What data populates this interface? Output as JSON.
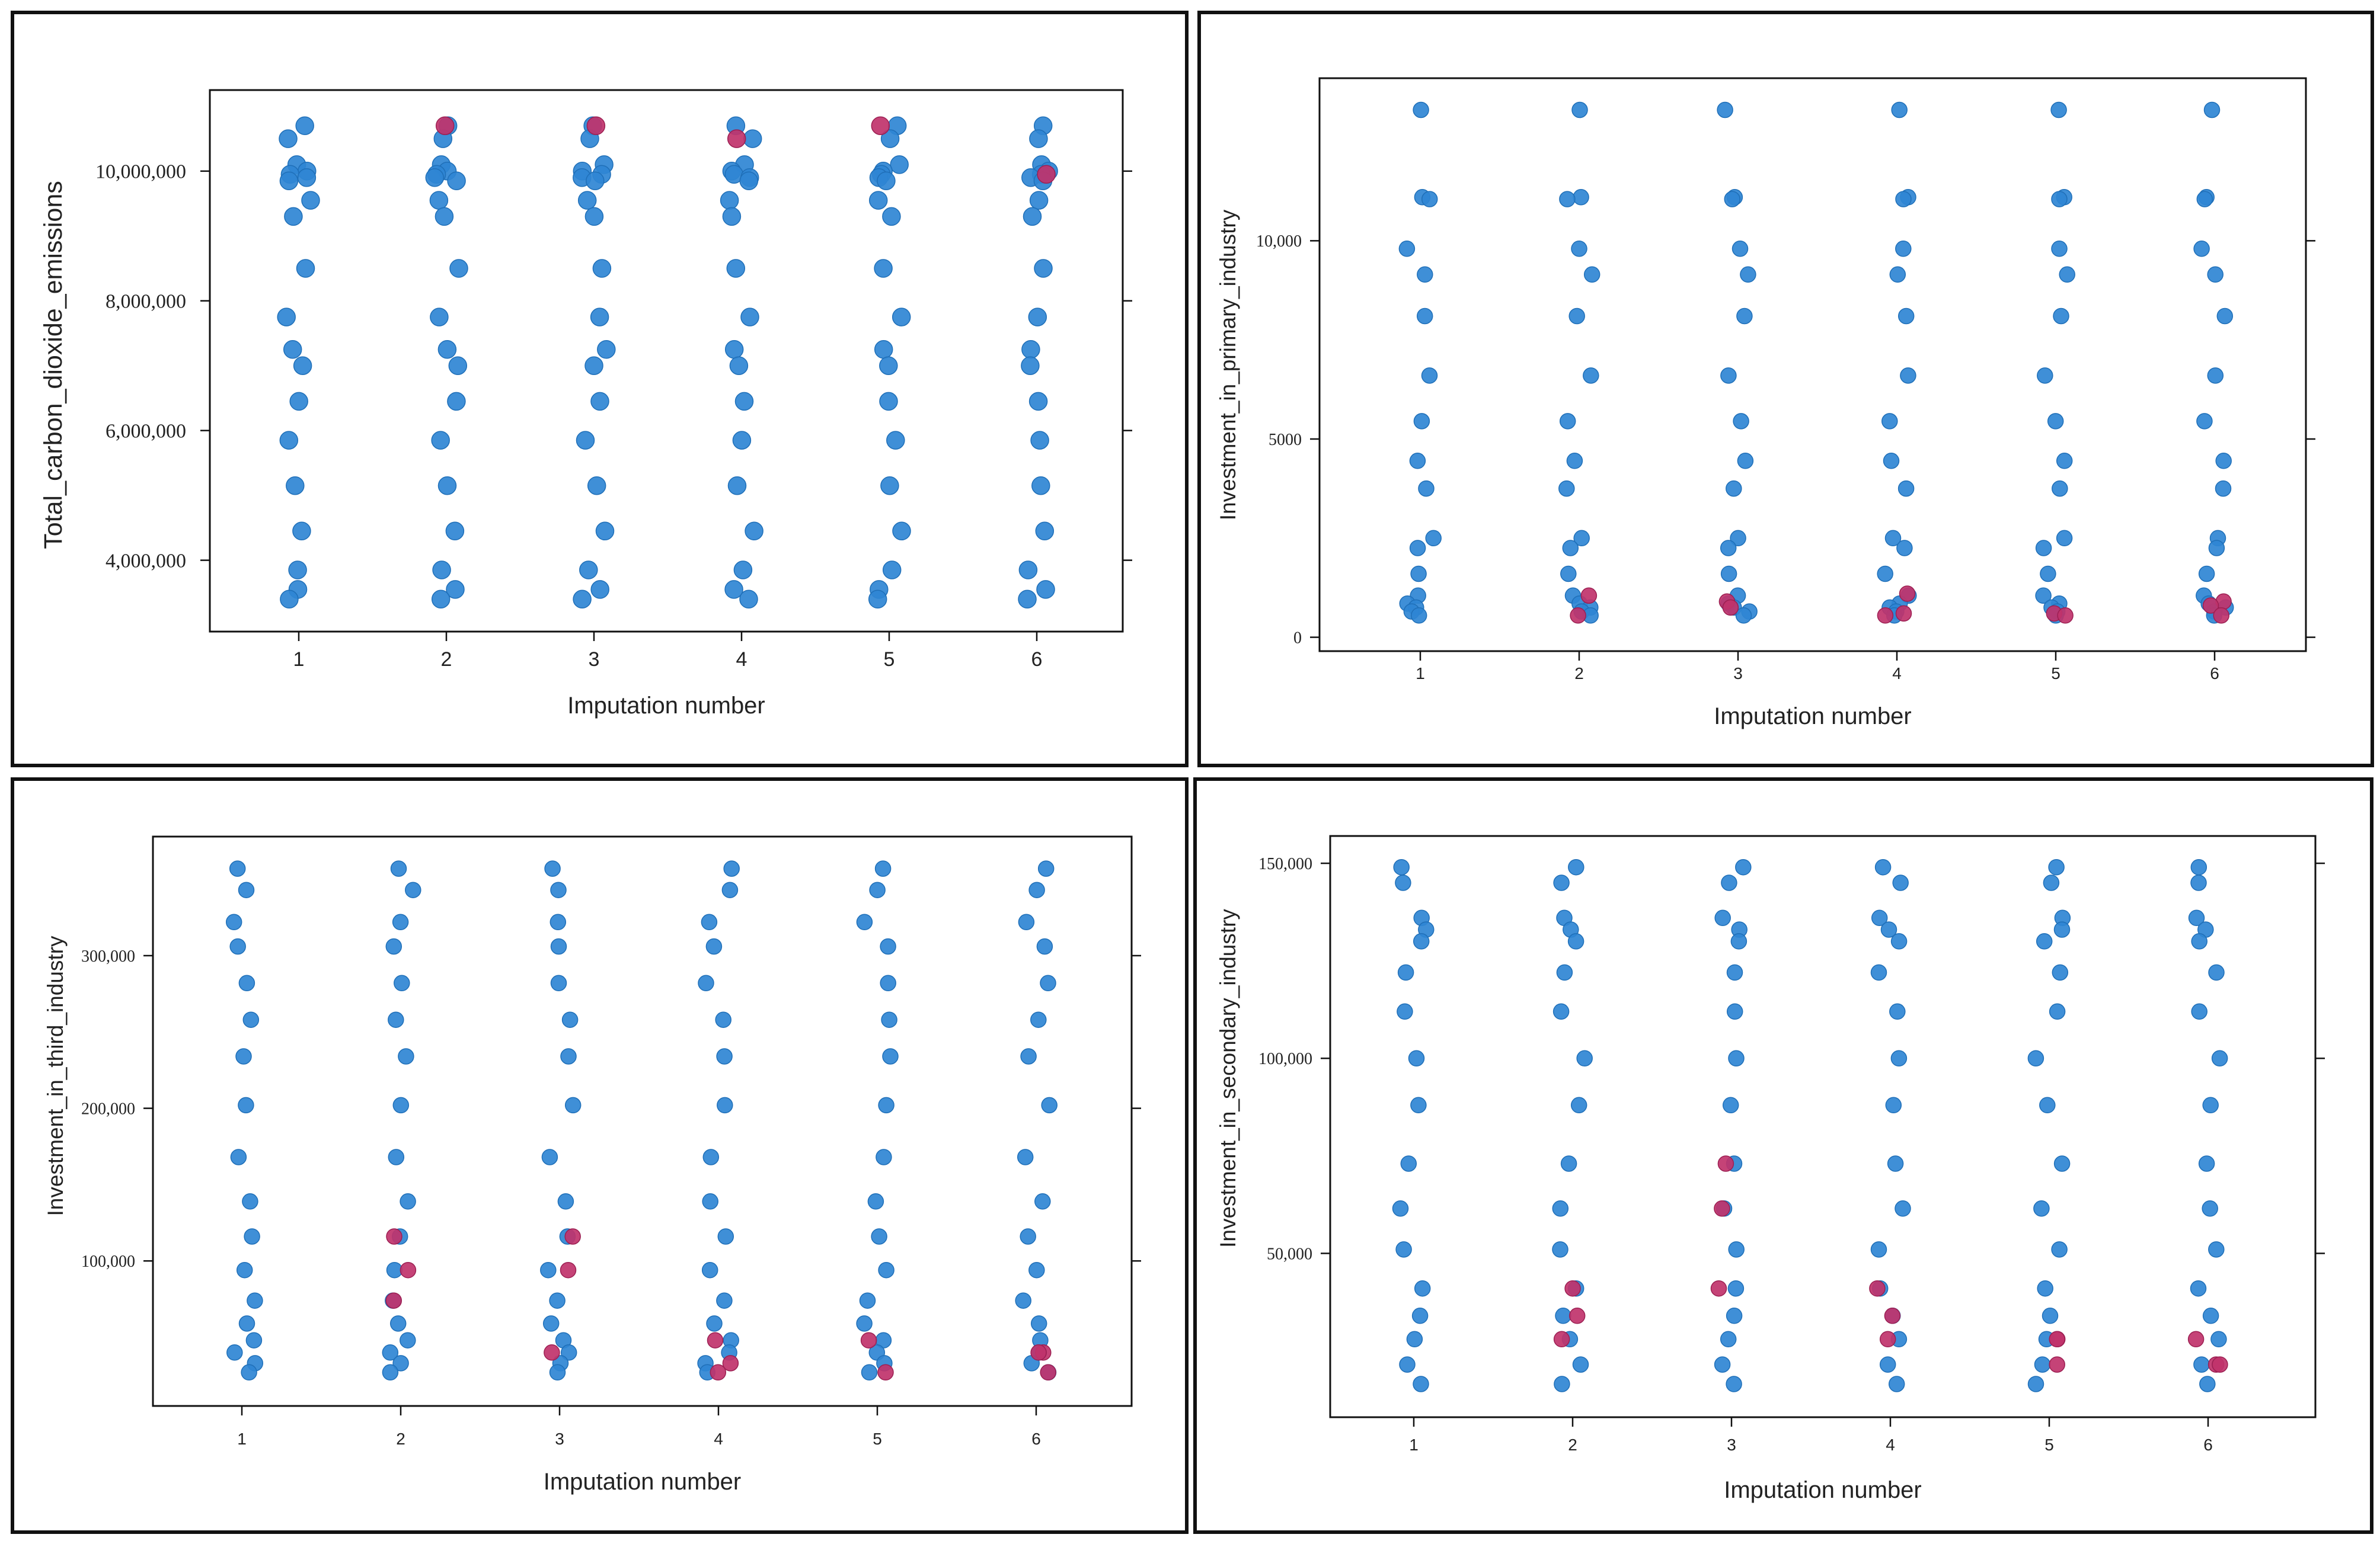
{
  "colors": {
    "observed": "#2f86d4",
    "imputed": "#c0336b",
    "frame": "#111111"
  },
  "chart_data": [
    {
      "type": "scatter",
      "title": "",
      "xlabel": "Imputation number",
      "ylabel": "Total_carbon_dioxide_emissions",
      "x_ticks": [
        "1",
        "2",
        "3",
        "4",
        "5",
        "6"
      ],
      "ylim": [
        2900000,
        11250000
      ],
      "y_ticks": [
        4000000,
        6000000,
        8000000,
        10000000
      ],
      "y_tick_labels": [
        "4,000,000",
        "6,000,000",
        "8,000,000",
        "10,000,000"
      ],
      "observed_values": [
        10700000,
        10500000,
        10100000,
        10000000,
        9950000,
        9900000,
        9850000,
        9550000,
        9300000,
        8500000,
        7750000,
        7250000,
        7000000,
        6450000,
        5850000,
        5150000,
        4450000,
        3850000,
        3550000,
        3400000
      ],
      "imputed": [
        {
          "imp": 2,
          "y": 10700000
        },
        {
          "imp": 3,
          "y": 10700000
        },
        {
          "imp": 4,
          "y": 10500000
        },
        {
          "imp": 5,
          "y": 10700000
        },
        {
          "imp": 6,
          "y": 9950000
        }
      ]
    },
    {
      "type": "scatter",
      "title": "",
      "xlabel": "Imputation number",
      "ylabel": "Investment_in_primary_industry",
      "x_ticks": [
        "1",
        "2",
        "3",
        "4",
        "5",
        "6"
      ],
      "ylim": [
        -350,
        14100
      ],
      "y_ticks": [
        0,
        5000,
        10000
      ],
      "y_tick_labels": [
        "0",
        "5000",
        "10,000"
      ],
      "observed_values": [
        13300,
        11100,
        11050,
        9800,
        9150,
        8100,
        6600,
        5450,
        4450,
        3750,
        2500,
        2250,
        1600,
        1050,
        850,
        750,
        650,
        550
      ],
      "imputed": [
        {
          "imp": 2,
          "y": 1050
        },
        {
          "imp": 2,
          "y": 550
        },
        {
          "imp": 3,
          "y": 900
        },
        {
          "imp": 3,
          "y": 750
        },
        {
          "imp": 4,
          "y": 1100
        },
        {
          "imp": 4,
          "y": 600
        },
        {
          "imp": 4,
          "y": 550
        },
        {
          "imp": 5,
          "y": 600
        },
        {
          "imp": 5,
          "y": 550
        },
        {
          "imp": 6,
          "y": 900
        },
        {
          "imp": 6,
          "y": 800
        },
        {
          "imp": 6,
          "y": 550
        }
      ]
    },
    {
      "type": "scatter",
      "title": "",
      "xlabel": "Imputation number",
      "ylabel": "Investment_in_third_industry",
      "x_ticks": [
        "1",
        "2",
        "3",
        "4",
        "5",
        "6"
      ],
      "ylim": [
        5000,
        378000
      ],
      "y_ticks": [
        100000,
        200000,
        300000
      ],
      "y_tick_labels": [
        "100,000",
        "200,000",
        "300,000"
      ],
      "observed_values": [
        357000,
        343000,
        322000,
        306000,
        282000,
        258000,
        234000,
        202000,
        168000,
        139000,
        116000,
        94000,
        74000,
        59000,
        48000,
        40000,
        33000,
        27000
      ],
      "imputed": [
        {
          "imp": 2,
          "y": 116000
        },
        {
          "imp": 2,
          "y": 94000
        },
        {
          "imp": 2,
          "y": 74000
        },
        {
          "imp": 3,
          "y": 116000
        },
        {
          "imp": 3,
          "y": 94000
        },
        {
          "imp": 3,
          "y": 40000
        },
        {
          "imp": 4,
          "y": 48000
        },
        {
          "imp": 4,
          "y": 33000
        },
        {
          "imp": 4,
          "y": 27000
        },
        {
          "imp": 5,
          "y": 48000
        },
        {
          "imp": 5,
          "y": 27000
        },
        {
          "imp": 6,
          "y": 40000
        },
        {
          "imp": 6,
          "y": 40000
        },
        {
          "imp": 6,
          "y": 27000
        }
      ]
    },
    {
      "type": "scatter",
      "title": "",
      "xlabel": "Imputation number",
      "ylabel": "Investment_in_secondary_industry",
      "x_ticks": [
        "1",
        "2",
        "3",
        "4",
        "5",
        "6"
      ],
      "ylim": [
        8000,
        157000
      ],
      "y_ticks": [
        50000,
        100000,
        150000
      ],
      "y_tick_labels": [
        "50,000",
        "100,000",
        "150,000"
      ],
      "observed_values": [
        149000,
        145000,
        136000,
        133000,
        130000,
        122000,
        112000,
        100000,
        88000,
        73000,
        61500,
        51000,
        41000,
        34000,
        28000,
        21500,
        16500
      ],
      "imputed": [
        {
          "imp": 2,
          "y": 41000
        },
        {
          "imp": 2,
          "y": 34000
        },
        {
          "imp": 2,
          "y": 28000
        },
        {
          "imp": 3,
          "y": 73000
        },
        {
          "imp": 3,
          "y": 61500
        },
        {
          "imp": 3,
          "y": 41000
        },
        {
          "imp": 4,
          "y": 41000
        },
        {
          "imp": 4,
          "y": 34000
        },
        {
          "imp": 4,
          "y": 28000
        },
        {
          "imp": 5,
          "y": 28000
        },
        {
          "imp": 5,
          "y": 28000
        },
        {
          "imp": 5,
          "y": 21500
        },
        {
          "imp": 6,
          "y": 28000
        },
        {
          "imp": 6,
          "y": 21500
        },
        {
          "imp": 6,
          "y": 21500
        }
      ]
    }
  ]
}
